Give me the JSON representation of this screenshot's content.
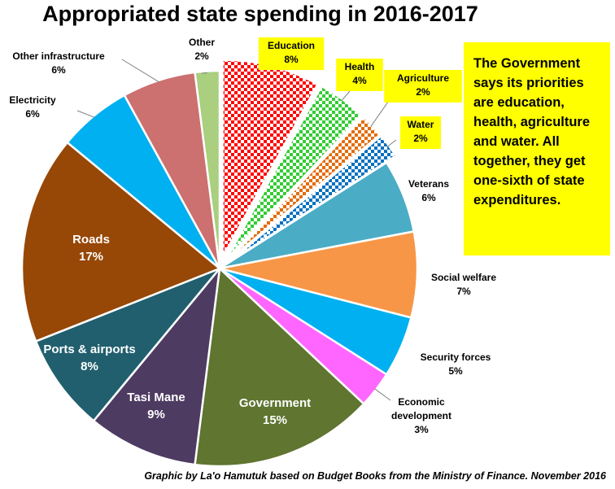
{
  "title": "Appropriated state spending in 2016-2017",
  "note": "The Government says its priorities are education, health, agriculture and water. All together, they get one-sixth of state expenditures.",
  "credit": "Graphic by La'o Hamutuk based on Budget Books from the Ministry of Finance. November 2016",
  "chart_data": {
    "type": "pie",
    "title": "Appropriated state spending in 2016-2017",
    "start": "12 o'clock, clockwise",
    "slices": [
      {
        "name": "Education",
        "value": 8,
        "label": "8%",
        "color": "#ff0000",
        "pattern": "checker",
        "exploded": true,
        "highlight": true
      },
      {
        "name": "Health",
        "value": 4,
        "label": "4%",
        "color": "#33cc33",
        "pattern": "checker",
        "exploded": true,
        "highlight": true
      },
      {
        "name": "Agriculture",
        "value": 2,
        "label": "2%",
        "color": "#e46c0a",
        "pattern": "checker",
        "exploded": true,
        "highlight": true
      },
      {
        "name": "Water",
        "value": 2,
        "label": "2%",
        "color": "#0070c0",
        "pattern": "checker",
        "exploded": true,
        "highlight": true
      },
      {
        "name": "Veterans",
        "value": 6,
        "label": "6%",
        "color": "#4bacc6"
      },
      {
        "name": "Social welfare",
        "value": 7,
        "label": "7%",
        "color": "#f79646"
      },
      {
        "name": "Security forces",
        "value": 5,
        "label": "5%",
        "color": "#00b0f0"
      },
      {
        "name": "Economic development",
        "value": 3,
        "label": "3%",
        "color": "#ff66ff"
      },
      {
        "name": "Government",
        "value": 15,
        "label": "15%",
        "color": "#5f7530"
      },
      {
        "name": "Tasi Mane",
        "value": 9,
        "label": "9%",
        "color": "#4e3b62"
      },
      {
        "name": "Ports & airports",
        "value": 8,
        "label": "8%",
        "color": "#215f6e"
      },
      {
        "name": "Roads",
        "value": 17,
        "label": "17%",
        "color": "#974706"
      },
      {
        "name": "Electricity",
        "value": 6,
        "label": "6%",
        "color": "#00b0f0"
      },
      {
        "name": "Other infrastructure",
        "value": 6,
        "label": "6%",
        "color": "#cc7070"
      },
      {
        "name": "Other",
        "value": 2,
        "label": "2%",
        "color": "#a9cf7f"
      }
    ]
  }
}
